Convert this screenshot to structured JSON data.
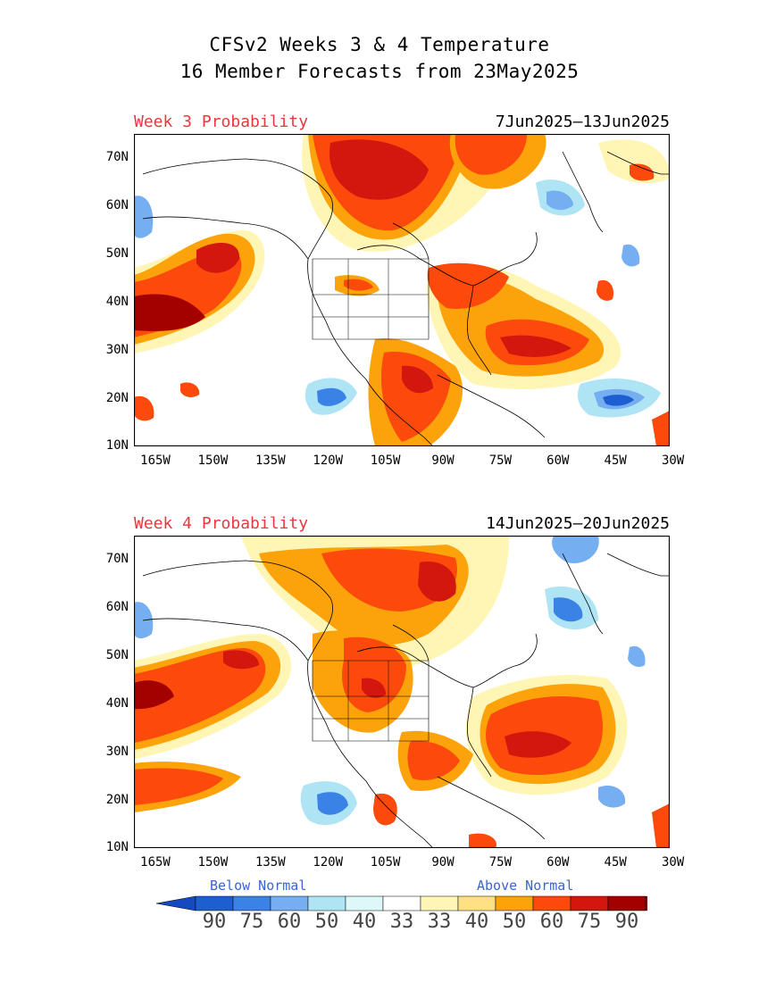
{
  "header": {
    "line1": "CFSv2 Weeks 3 & 4 Temperature",
    "line2": "16 Member Forecasts from 23May2025"
  },
  "panels": [
    {
      "label": "Week 3 Probability",
      "dates": "7Jun2025—13Jun2025"
    },
    {
      "label": "Week 4 Probability",
      "dates": "14Jun2025—20Jun2025"
    }
  ],
  "axes": {
    "lat_labels": [
      "70N",
      "60N",
      "50N",
      "40N",
      "30N",
      "20N",
      "10N"
    ],
    "lon_labels": [
      "165W",
      "150W",
      "135W",
      "120W",
      "105W",
      "90W",
      "75W",
      "60W",
      "45W",
      "30W"
    ]
  },
  "legend": {
    "below_label": "Below Normal",
    "above_label": "Above Normal",
    "numbers": [
      "90",
      "75",
      "60",
      "50",
      "40",
      "33",
      "33",
      "40",
      "50",
      "60",
      "75",
      "90"
    ],
    "colors": [
      "#1d5fd1",
      "#3b82e6",
      "#76aef2",
      "#aee4f4",
      "#dcf8f8",
      "#ffffff",
      "#fff6b6",
      "#ffe082",
      "#fca30c",
      "#fb4a0c",
      "#d2180e",
      "#a30000"
    ],
    "arrow_colors": {
      "left": "#1549c0",
      "right": "#8a0000"
    }
  }
}
